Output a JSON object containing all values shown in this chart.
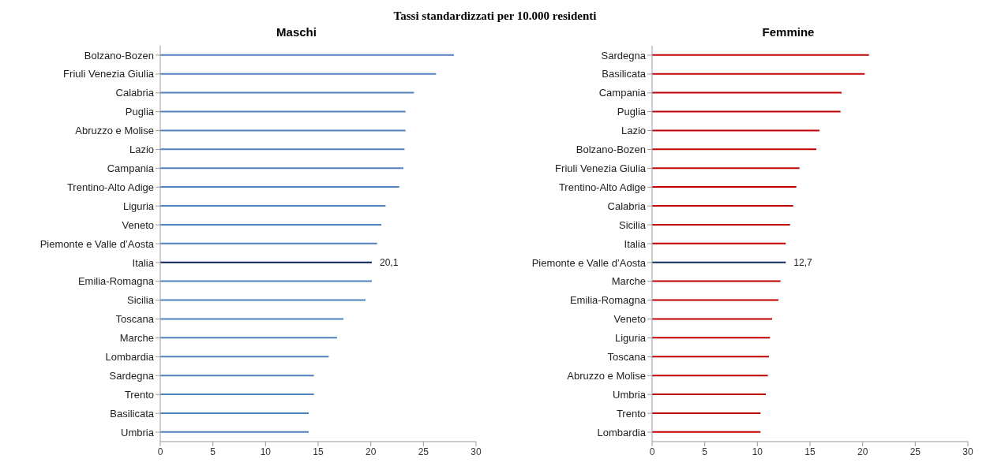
{
  "chart_data": [
    {
      "type": "bar",
      "orientation": "horizontal",
      "title": "Maschi",
      "subtitle": "Tassi standardizzati per 10.000 residenti",
      "categories": [
        "Bolzano-Bozen",
        "Friuli Venezia Giulia",
        "Calabria",
        "Puglia",
        "Abruzzo e Molise",
        "Lazio",
        "Campania",
        "Trentino-Alto Adige",
        "Liguria",
        "Veneto",
        "Piemonte e Valle d’Aosta",
        "Italia",
        "Emilia-Romagna",
        "Sicilia",
        "Toscana",
        "Marche",
        "Lombardia",
        "Sardegna",
        "Trento",
        "Basilicata",
        "Umbria"
      ],
      "values": [
        27.9,
        26.2,
        24.1,
        23.3,
        23.3,
        23.2,
        23.1,
        22.7,
        21.4,
        21.0,
        20.6,
        20.1,
        20.1,
        19.5,
        17.4,
        16.8,
        16.0,
        14.6,
        14.6,
        14.1,
        14.1
      ],
      "colors": [
        "#4f81bd",
        "#4f81bd",
        "#4f81bd",
        "#4f81bd",
        "#4f81bd",
        "#4f81bd",
        "#4f81bd",
        "#4f81bd",
        "#4f81bd",
        "#4f81bd",
        "#4f81bd",
        "#0c1f55",
        "#4f81bd",
        "#4f81bd",
        "#4f81bd",
        "#4f81bd",
        "#4f81bd",
        "#4f81bd",
        "#4f81bd",
        "#4f81bd",
        "#4f81bd"
      ],
      "value_labels": [
        null,
        null,
        null,
        null,
        null,
        null,
        null,
        null,
        null,
        null,
        null,
        "20,1",
        null,
        null,
        null,
        null,
        null,
        null,
        null,
        null,
        null
      ],
      "xlim": [
        0,
        30
      ],
      "xticks": [
        0,
        5,
        10,
        15,
        20,
        25,
        30
      ],
      "grid": false,
      "legend": false
    },
    {
      "type": "bar",
      "orientation": "horizontal",
      "title": "Femmine",
      "categories": [
        "Sardegna",
        "Basilicata",
        "Campania",
        "Puglia",
        "Lazio",
        "Bolzano-Bozen",
        "Friuli Venezia Giulia",
        "Trentino-Alto Adige",
        "Calabria",
        "Sicilia",
        "Italia",
        "Piemonte e Valle d’Aosta",
        "Marche",
        "Emilia-Romagna",
        "Veneto",
        "Liguria",
        "Toscana",
        "Abruzzo e Molise",
        "Umbria",
        "Trento",
        "Lombardia"
      ],
      "values": [
        20.6,
        20.2,
        18.0,
        17.9,
        15.9,
        15.6,
        14.0,
        13.7,
        13.4,
        13.1,
        12.7,
        12.7,
        12.2,
        12.0,
        11.4,
        11.2,
        11.1,
        11.0,
        10.8,
        10.3,
        10.3
      ],
      "colors": [
        "#c00000",
        "#c00000",
        "#c00000",
        "#c00000",
        "#c00000",
        "#c00000",
        "#c00000",
        "#c00000",
        "#c00000",
        "#c00000",
        "#c00000",
        "#0f2a5e",
        "#c00000",
        "#c00000",
        "#c00000",
        "#c00000",
        "#c00000",
        "#c00000",
        "#c00000",
        "#c00000",
        "#c00000"
      ],
      "value_labels": [
        null,
        null,
        null,
        null,
        null,
        null,
        null,
        null,
        null,
        null,
        null,
        "12,7",
        null,
        null,
        null,
        null,
        null,
        null,
        null,
        null,
        null
      ],
      "xlim": [
        0,
        30
      ],
      "xticks": [
        0,
        5,
        10,
        15,
        20,
        25,
        30
      ],
      "grid": false,
      "legend": false
    }
  ]
}
